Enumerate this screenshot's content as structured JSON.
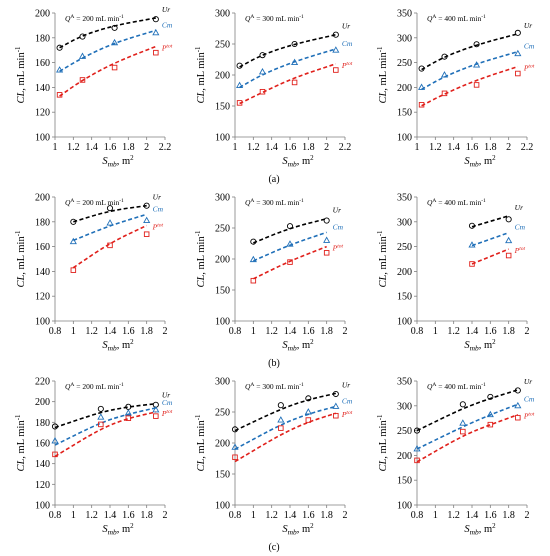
{
  "figure": {
    "row_labels": [
      "(a)",
      "(b)",
      "(c)"
    ]
  },
  "colors": {
    "Ur": "#000000",
    "Cm": "#1f6fb8",
    "Ptot": "#e0201b",
    "axis": "#7f7f7f",
    "text": "#000000"
  },
  "chart_data": [
    {
      "type": "scatter",
      "row": "a",
      "col": 0,
      "annotation": "Q^A = 200 mL min^-1",
      "ylabel": "CL, mL min^-1",
      "xlabel": "S_mb, m^2",
      "ylim": [
        100,
        200
      ],
      "yticks": [
        100,
        120,
        140,
        160,
        180,
        200
      ],
      "xlim": [
        1,
        2.2
      ],
      "xticks": [
        "1",
        "1.2",
        "1.4",
        "1.6",
        "1.8",
        "2",
        "2.2"
      ],
      "x": [
        1.05,
        1.3,
        1.65,
        2.1
      ],
      "series": [
        {
          "name": "Ur",
          "marker": "circle",
          "values": [
            172,
            181,
            188,
            195
          ],
          "trend": [
            172,
            182,
            190,
            196
          ]
        },
        {
          "name": "Cm",
          "marker": "triangle",
          "values": [
            154,
            165,
            176,
            184
          ],
          "trend": [
            153,
            164,
            176,
            186
          ]
        },
        {
          "name": "Ptot",
          "marker": "square",
          "values": [
            134,
            146,
            156,
            168
          ],
          "trend": [
            133,
            146,
            160,
            173
          ]
        }
      ]
    },
    {
      "type": "scatter",
      "row": "a",
      "col": 1,
      "annotation": "Q^A = 300 mL min^-1",
      "ylabel": "CL, mL min^-1",
      "xlabel": "S_mb, m^2",
      "ylim": [
        100,
        300
      ],
      "yticks": [
        100,
        150,
        200,
        250,
        300
      ],
      "xlim": [
        1,
        2.2
      ],
      "xticks": [
        "1",
        "1.2",
        "1.4",
        "1.6",
        "1.8",
        "2",
        "2.2"
      ],
      "x": [
        1.05,
        1.3,
        1.65,
        2.1
      ],
      "series": [
        {
          "name": "Ur",
          "marker": "circle",
          "values": [
            215,
            232,
            250,
            265
          ],
          "trend": [
            213,
            233,
            250,
            265
          ]
        },
        {
          "name": "Cm",
          "marker": "triangle",
          "values": [
            183,
            205,
            220,
            240
          ],
          "trend": [
            180,
            201,
            222,
            242
          ]
        },
        {
          "name": "Ptot",
          "marker": "square",
          "values": [
            155,
            173,
            188,
            208
          ],
          "trend": [
            154,
            172,
            196,
            218
          ]
        }
      ]
    },
    {
      "type": "scatter",
      "row": "a",
      "col": 2,
      "annotation": "Q^A = 400 mL min^-1",
      "ylabel": "CL, mL min^-1",
      "xlabel": "S_mb, m^2",
      "ylim": [
        100,
        350
      ],
      "yticks": [
        100,
        150,
        200,
        250,
        300,
        350
      ],
      "xlim": [
        1,
        2.2
      ],
      "xticks": [
        "1",
        "1.2",
        "1.4",
        "1.6",
        "1.8",
        "2",
        "2.2"
      ],
      "x": [
        1.05,
        1.3,
        1.65,
        2.1
      ],
      "series": [
        {
          "name": "Ur",
          "marker": "circle",
          "values": [
            238,
            262,
            287,
            310
          ],
          "trend": [
            236,
            262,
            286,
            308
          ]
        },
        {
          "name": "Cm",
          "marker": "triangle",
          "values": [
            200,
            225,
            245,
            268
          ],
          "trend": [
            196,
            222,
            248,
            272
          ]
        },
        {
          "name": "Ptot",
          "marker": "square",
          "values": [
            165,
            188,
            205,
            228
          ],
          "trend": [
            163,
            187,
            215,
            242
          ]
        }
      ]
    },
    {
      "type": "scatter",
      "row": "b",
      "col": 0,
      "annotation": "Q^A = 200 mL min^-1",
      "ylabel": "CL, mL min^-1",
      "xlabel": "S_mb, m^2",
      "ylim": [
        100,
        200
      ],
      "yticks": [
        100,
        120,
        140,
        160,
        180,
        200
      ],
      "xlim": [
        0.8,
        2
      ],
      "xticks": [
        "0.8",
        "1",
        "1.2",
        "1.4",
        "1.6",
        "1.8",
        "2"
      ],
      "x": [
        1.0,
        1.4,
        1.8
      ],
      "series": [
        {
          "name": "Ur",
          "marker": "circle",
          "values": [
            180,
            191,
            193
          ],
          "trend": [
            180,
            189,
            193
          ]
        },
        {
          "name": "Cm",
          "marker": "triangle",
          "values": [
            164,
            179,
            181
          ],
          "trend": [
            165,
            177,
            186
          ]
        },
        {
          "name": "Ptot",
          "marker": "square",
          "values": [
            141,
            161,
            170
          ],
          "trend": [
            143,
            163,
            177
          ]
        }
      ]
    },
    {
      "type": "scatter",
      "row": "b",
      "col": 1,
      "annotation": "Q^A = 300 mL min^-1",
      "ylabel": "CL, mL min^-1",
      "xlabel": "S_mb, m^2",
      "ylim": [
        100,
        300
      ],
      "yticks": [
        100,
        150,
        200,
        250,
        300
      ],
      "xlim": [
        0.8,
        2
      ],
      "xticks": [
        "0.8",
        "1",
        "1.2",
        "1.4",
        "1.6",
        "1.8",
        "2"
      ],
      "x": [
        1.0,
        1.4,
        1.8
      ],
      "series": [
        {
          "name": "Ur",
          "marker": "circle",
          "values": [
            228,
            253,
            262
          ],
          "trend": [
            226,
            250,
            265
          ]
        },
        {
          "name": "Cm",
          "marker": "triangle",
          "values": [
            199,
            224,
            230
          ],
          "trend": [
            197,
            223,
            243
          ]
        },
        {
          "name": "Ptot",
          "marker": "square",
          "values": [
            165,
            195,
            210
          ],
          "trend": [
            168,
            197,
            220
          ]
        }
      ]
    },
    {
      "type": "scatter",
      "row": "b",
      "col": 2,
      "annotation": "Q^A = 400 mL min^-1",
      "ylabel": "CL, mL min^-1",
      "xlabel": "S_mb, m^2",
      "ylim": [
        100,
        350
      ],
      "yticks": [
        100,
        150,
        200,
        250,
        300,
        350
      ],
      "xlim": [
        0.8,
        2
      ],
      "xticks": [
        "0.8",
        "1",
        "1.2",
        "1.4",
        "1.6",
        "1.8",
        "2"
      ],
      "x": [
        1.4,
        1.8
      ],
      "series": [
        {
          "name": "Ur",
          "marker": "circle",
          "values": [
            292,
            305
          ],
          "trend": [
            290,
            312
          ]
        },
        {
          "name": "Cm",
          "marker": "triangle",
          "values": [
            253,
            262
          ],
          "trend": [
            252,
            278
          ]
        },
        {
          "name": "Ptot",
          "marker": "square",
          "values": [
            215,
            232
          ],
          "trend": [
            215,
            245
          ]
        }
      ]
    },
    {
      "type": "scatter",
      "row": "c",
      "col": 0,
      "annotation": "Q^A = 200 mL min^-1",
      "ylabel": "CL, mL min^-1",
      "xlabel": "S_mb, m^2",
      "ylim": [
        100,
        220
      ],
      "yticks": [
        100,
        120,
        140,
        160,
        180,
        200,
        220
      ],
      "xlim": [
        0.8,
        2
      ],
      "xticks": [
        "0.8",
        "1",
        "1.2",
        "1.4",
        "1.6",
        "1.8",
        "2"
      ],
      "x": [
        0.8,
        1.3,
        1.6,
        1.9
      ],
      "series": [
        {
          "name": "Ur",
          "marker": "circle",
          "values": [
            176,
            193,
            195,
            197
          ],
          "trend": [
            175,
            190,
            195,
            198
          ]
        },
        {
          "name": "Cm",
          "marker": "triangle",
          "values": [
            162,
            185,
            189,
            192
          ],
          "trend": [
            158,
            180,
            188,
            194
          ]
        },
        {
          "name": "Ptot",
          "marker": "square",
          "values": [
            149,
            178,
            184,
            186
          ],
          "trend": [
            147,
            174,
            184,
            190
          ]
        }
      ]
    },
    {
      "type": "scatter",
      "row": "c",
      "col": 1,
      "annotation": "Q^A = 300 mL min^-1",
      "ylabel": "CL, mL min^-1",
      "xlabel": "S_mb, m^2",
      "ylim": [
        100,
        300
      ],
      "yticks": [
        100,
        150,
        200,
        250,
        300
      ],
      "xlim": [
        0.8,
        2
      ],
      "xticks": [
        "0.8",
        "1",
        "1.2",
        "1.4",
        "1.6",
        "1.8",
        "2"
      ],
      "x": [
        0.8,
        1.3,
        1.6,
        1.9
      ],
      "series": [
        {
          "name": "Ur",
          "marker": "circle",
          "values": [
            222,
            261,
            272,
            279
          ],
          "trend": [
            220,
            255,
            270,
            280
          ]
        },
        {
          "name": "Cm",
          "marker": "triangle",
          "values": [
            193,
            237,
            250,
            259
          ],
          "trend": [
            190,
            230,
            247,
            259
          ]
        },
        {
          "name": "Ptot",
          "marker": "square",
          "values": [
            177,
            224,
            237,
            244
          ],
          "trend": [
            170,
            214,
            234,
            248
          ]
        }
      ]
    },
    {
      "type": "scatter",
      "row": "c",
      "col": 2,
      "annotation": "Q^A = 400 mL min^-1",
      "ylabel": "CL, mL min^-1",
      "xlabel": "S_mb, m^2",
      "ylim": [
        100,
        350
      ],
      "yticks": [
        100,
        150,
        200,
        250,
        300,
        350
      ],
      "xlim": [
        0.8,
        2
      ],
      "xticks": [
        "0.8",
        "1",
        "1.2",
        "1.4",
        "1.6",
        "1.8",
        "2"
      ],
      "x": [
        0.8,
        1.3,
        1.6,
        1.9
      ],
      "series": [
        {
          "name": "Ur",
          "marker": "circle",
          "values": [
            250,
            303,
            318,
            331
          ],
          "trend": [
            250,
            295,
            315,
            332
          ]
        },
        {
          "name": "Cm",
          "marker": "triangle",
          "values": [
            213,
            265,
            282,
            300
          ],
          "trend": [
            213,
            258,
            282,
            303
          ]
        },
        {
          "name": "Ptot",
          "marker": "square",
          "values": [
            190,
            248,
            262,
            276
          ],
          "trend": [
            187,
            240,
            262,
            282
          ]
        }
      ]
    }
  ]
}
